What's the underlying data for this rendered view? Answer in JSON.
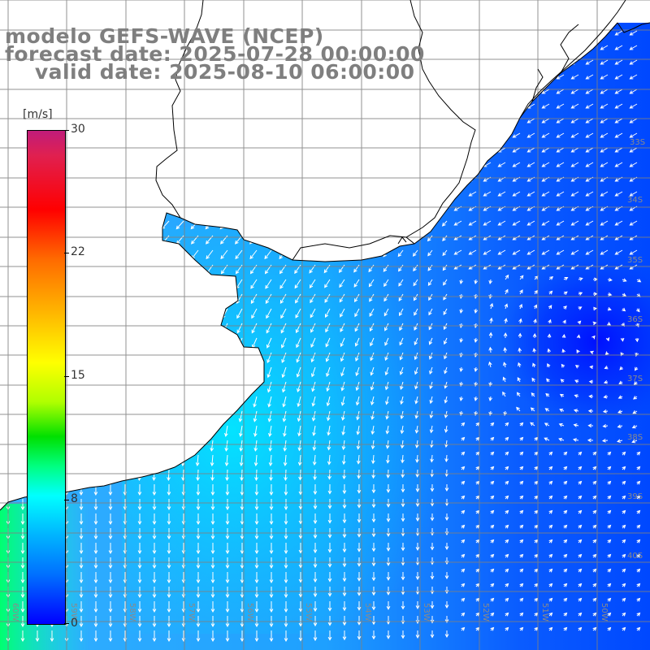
{
  "title": {
    "line1": "modelo GEFS-WAVE (NCEP)",
    "line2": "forecast date: 2025-07-28 00:00:00",
    "line3": "    valid date: 2025-08-10 06:00:00"
  },
  "colorbar": {
    "unit": "[m/s]",
    "ticks": [
      "30",
      "22",
      "15",
      "8",
      "0"
    ],
    "range": [
      0,
      30
    ]
  },
  "lat_labels": [
    "33S",
    "34S",
    "35S",
    "36S",
    "37S",
    "38S",
    "39S",
    "40S"
  ],
  "lon_labels": [
    "60W",
    "59W",
    "58W",
    "57W",
    "56W",
    "55W",
    "54W",
    "53W",
    "52W",
    "51W",
    "50W"
  ],
  "colors": {
    "land": "#ffffff",
    "grid": "#808080",
    "coast": "#000000",
    "arrow": "#ffffff"
  }
}
